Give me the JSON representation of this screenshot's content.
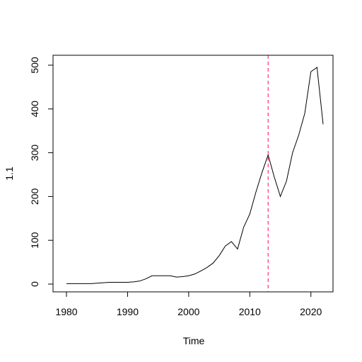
{
  "chart_data": {
    "type": "line",
    "title": "",
    "xlabel": "Time",
    "ylabel": "1.1",
    "xlim": [
      1980,
      2022
    ],
    "ylim": [
      0,
      500
    ],
    "x_ticks": [
      1980,
      1990,
      2000,
      2010,
      2020
    ],
    "y_ticks": [
      0,
      100,
      200,
      300,
      400,
      500
    ],
    "grid": false,
    "series": [
      {
        "color": "#000000",
        "x": [
          1980,
          1981,
          1982,
          1983,
          1984,
          1985,
          1986,
          1987,
          1988,
          1989,
          1990,
          1991,
          1992,
          1993,
          1994,
          1995,
          1996,
          1997,
          1998,
          1999,
          2000,
          2001,
          2002,
          2003,
          2004,
          2005,
          2006,
          2007,
          2008,
          2009,
          2010,
          2011,
          2012,
          2013,
          2014,
          2015,
          2016,
          2017,
          2018,
          2019,
          2020,
          2021,
          2022
        ],
        "values": [
          1,
          1,
          1,
          1,
          1,
          2,
          3,
          4,
          4,
          4,
          4,
          5,
          7,
          12,
          19,
          19,
          19,
          19,
          16,
          17,
          19,
          23,
          30,
          38,
          48,
          65,
          87,
          97,
          80,
          130,
          160,
          210,
          255,
          295,
          245,
          200,
          235,
          300,
          340,
          390,
          485,
          495,
          365
        ]
      }
    ],
    "reference_lines": [
      {
        "axis": "x",
        "value": 2013,
        "color": "#ff0066",
        "style": "dashed"
      }
    ]
  }
}
